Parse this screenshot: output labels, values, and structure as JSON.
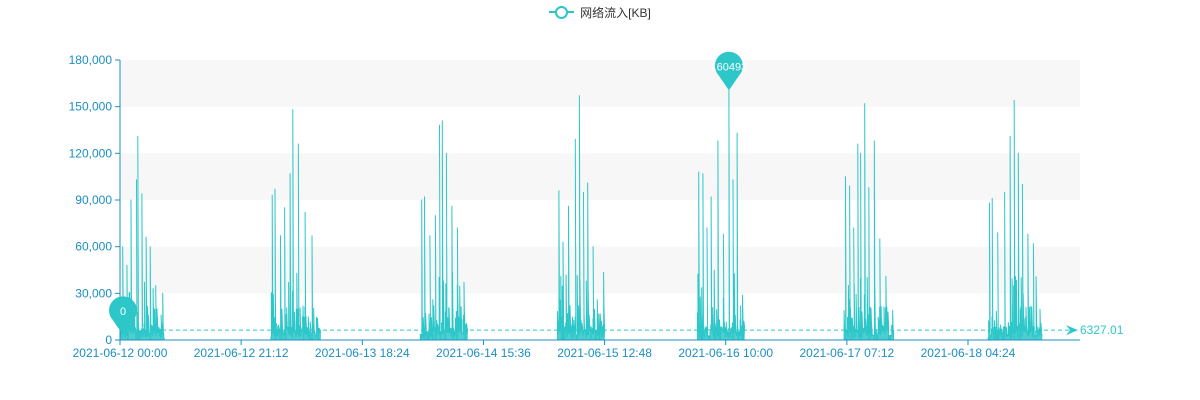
{
  "chart_data": {
    "type": "line",
    "title": "",
    "legend": {
      "position": "top-center",
      "entries": [
        "网络流入[KB]"
      ]
    },
    "series": [
      {
        "name": "网络流入[KB]",
        "color": "#2ec7c9",
        "max_point": {
          "label": "160493",
          "x_day": 4.44,
          "value": 160493
        },
        "min_point": {
          "label": "0",
          "x_day": 0.0,
          "value": 0
        },
        "average": {
          "label": "6327.01",
          "value": 6327.01
        },
        "bursts": [
          {
            "start_day": 0.0,
            "end_day": 0.32,
            "peaks": [
              [
                0.02,
                60000
              ],
              [
                0.05,
                48000
              ],
              [
                0.08,
                90000
              ],
              [
                0.12,
                103000
              ],
              [
                0.13,
                131000
              ],
              [
                0.16,
                94000
              ],
              [
                0.19,
                66000
              ],
              [
                0.22,
                60000
              ],
              [
                0.26,
                35000
              ],
              [
                0.3,
                16000
              ]
            ]
          },
          {
            "start_day": 1.1,
            "end_day": 1.46,
            "peaks": [
              [
                1.11,
                93000
              ],
              [
                1.13,
                97000
              ],
              [
                1.17,
                67000
              ],
              [
                1.2,
                85000
              ],
              [
                1.24,
                107000
              ],
              [
                1.26,
                148000
              ],
              [
                1.3,
                126000
              ],
              [
                1.35,
                82000
              ],
              [
                1.4,
                67000
              ],
              [
                1.44,
                9000
              ]
            ]
          },
          {
            "start_day": 2.19,
            "end_day": 2.53,
            "peaks": [
              [
                2.2,
                90000
              ],
              [
                2.22,
                92000
              ],
              [
                2.26,
                67000
              ],
              [
                2.3,
                80000
              ],
              [
                2.33,
                138000
              ],
              [
                2.35,
                141000
              ],
              [
                2.38,
                120000
              ],
              [
                2.42,
                86000
              ],
              [
                2.46,
                72000
              ],
              [
                2.5,
                13000
              ]
            ]
          },
          {
            "start_day": 3.19,
            "end_day": 3.53,
            "peaks": [
              [
                3.2,
                96000
              ],
              [
                3.23,
                63000
              ],
              [
                3.27,
                86000
              ],
              [
                3.32,
                129000
              ],
              [
                3.35,
                157000
              ],
              [
                3.38,
                95000
              ],
              [
                3.41,
                101000
              ],
              [
                3.45,
                60000
              ],
              [
                3.48,
                26000
              ],
              [
                3.51,
                12000
              ]
            ]
          },
          {
            "start_day": 4.21,
            "end_day": 4.55,
            "peaks": [
              [
                4.22,
                108000
              ],
              [
                4.25,
                107000
              ],
              [
                4.28,
                72000
              ],
              [
                4.31,
                92000
              ],
              [
                4.36,
                128000
              ],
              [
                4.4,
                68000
              ],
              [
                4.44,
                160493
              ],
              [
                4.47,
                103000
              ],
              [
                4.5,
                133000
              ],
              [
                4.53,
                9000
              ]
            ]
          },
          {
            "start_day": 5.28,
            "end_day": 5.64,
            "peaks": [
              [
                5.29,
                105000
              ],
              [
                5.32,
                99000
              ],
              [
                5.35,
                72000
              ],
              [
                5.38,
                126000
              ],
              [
                5.4,
                120000
              ],
              [
                5.43,
                152000
              ],
              [
                5.46,
                98000
              ],
              [
                5.5,
                128000
              ],
              [
                5.54,
                65000
              ],
              [
                5.6,
                18000
              ]
            ]
          },
          {
            "start_day": 6.33,
            "end_day": 6.72,
            "peaks": [
              [
                6.34,
                88000
              ],
              [
                6.36,
                91000
              ],
              [
                6.4,
                69000
              ],
              [
                6.45,
                95000
              ],
              [
                6.49,
                131000
              ],
              [
                6.52,
                154000
              ],
              [
                6.55,
                120000
              ],
              [
                6.58,
                100000
              ],
              [
                6.62,
                68000
              ],
              [
                6.66,
                62000
              ],
              [
                6.7,
                8000
              ]
            ]
          }
        ]
      }
    ],
    "x_axis": {
      "type": "time",
      "range_days": [
        0,
        7.0
      ],
      "tick_labels": [
        "2021-06-12 00:00",
        "2021-06-12 21:12",
        "2021-06-13 18:24",
        "2021-06-14 15:36",
        "2021-06-15 12:48",
        "2021-06-16 10:00",
        "2021-06-17 07:12",
        "2021-06-18 04:24"
      ],
      "tick_days": [
        0,
        0.8833,
        1.7667,
        2.65,
        3.5333,
        4.4167,
        5.3,
        6.1833
      ]
    },
    "y_axis": {
      "min": 0,
      "max": 180000,
      "ticks": [
        0,
        30000,
        60000,
        90000,
        120000,
        150000,
        180000
      ],
      "tick_labels": [
        "0",
        "30,000",
        "60,000",
        "90,000",
        "120,000",
        "150,000",
        "180,000"
      ]
    },
    "grid_bands": true
  }
}
